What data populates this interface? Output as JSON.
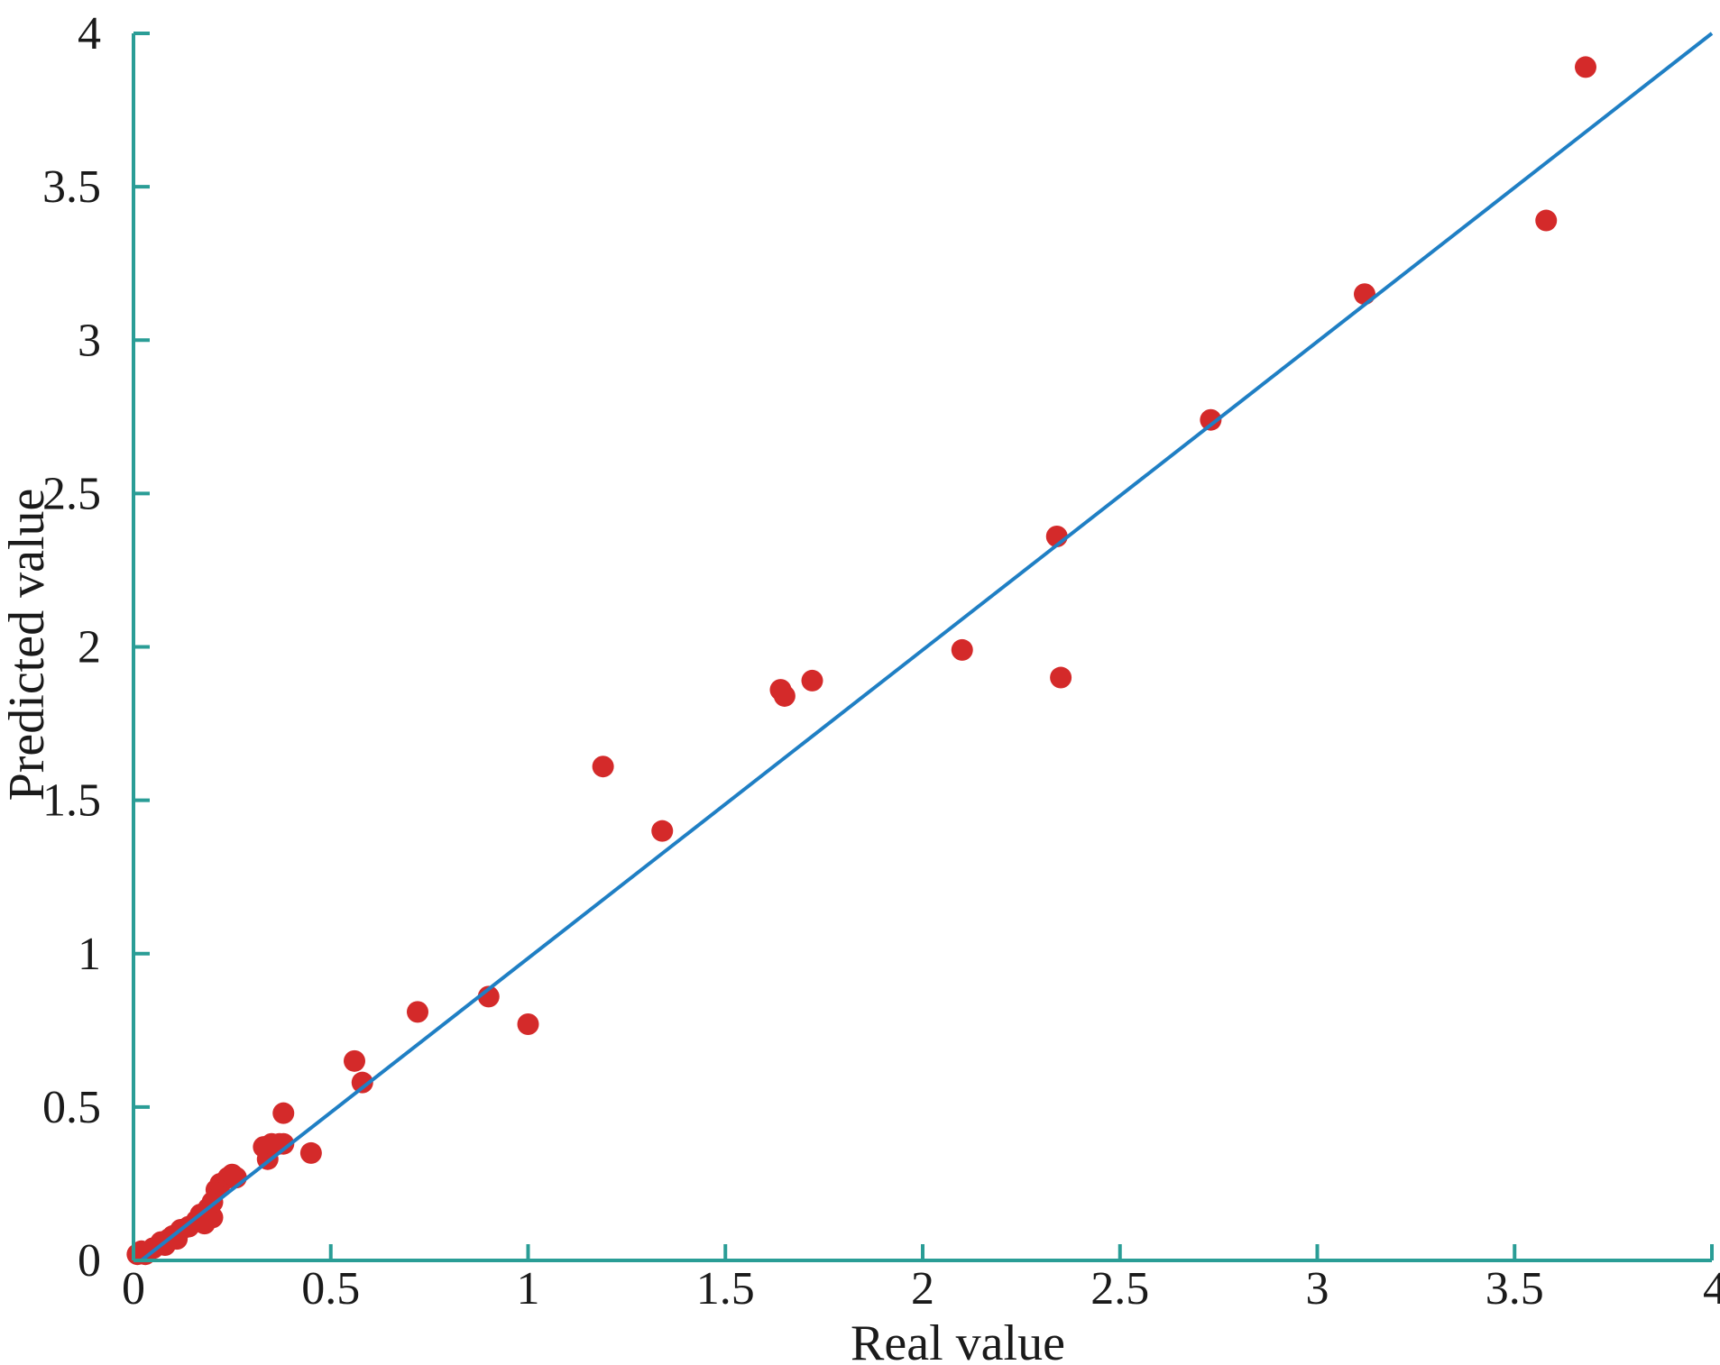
{
  "chart_data": {
    "type": "scatter",
    "title": "",
    "xlabel": "Real value",
    "ylabel": "Predicted value",
    "xlim": [
      0,
      4
    ],
    "ylim": [
      0,
      4
    ],
    "grid": false,
    "colors": {
      "axis": "#2a9d96",
      "points": "#d42a2a",
      "line": "#1f7fc4"
    },
    "x_ticks": [
      {
        "value": 0,
        "label": "0"
      },
      {
        "value": 0.5,
        "label": "0.5"
      },
      {
        "value": 1,
        "label": "1"
      },
      {
        "value": 1.5,
        "label": "1.5"
      },
      {
        "value": 2,
        "label": "2"
      },
      {
        "value": 2.5,
        "label": "2.5"
      },
      {
        "value": 3,
        "label": "3"
      },
      {
        "value": 3.5,
        "label": "3.5"
      },
      {
        "value": 4,
        "label": "4"
      }
    ],
    "y_ticks": [
      {
        "value": 0,
        "label": "0"
      },
      {
        "value": 0.5,
        "label": "0.5"
      },
      {
        "value": 1,
        "label": "1"
      },
      {
        "value": 1.5,
        "label": "1.5"
      },
      {
        "value": 2,
        "label": "2"
      },
      {
        "value": 2.5,
        "label": "2.5"
      },
      {
        "value": 3,
        "label": "3"
      },
      {
        "value": 3.5,
        "label": "3.5"
      },
      {
        "value": 4,
        "label": "4"
      }
    ],
    "reference_line": {
      "x": [
        0.02,
        4.0
      ],
      "y": [
        0.0,
        4.0
      ]
    },
    "points": [
      {
        "x": 0.01,
        "y": 0.02
      },
      {
        "x": 0.02,
        "y": 0.03
      },
      {
        "x": 0.03,
        "y": 0.02
      },
      {
        "x": 0.05,
        "y": 0.04
      },
      {
        "x": 0.07,
        "y": 0.06
      },
      {
        "x": 0.08,
        "y": 0.05
      },
      {
        "x": 0.09,
        "y": 0.07
      },
      {
        "x": 0.1,
        "y": 0.08
      },
      {
        "x": 0.11,
        "y": 0.07
      },
      {
        "x": 0.12,
        "y": 0.1
      },
      {
        "x": 0.14,
        "y": 0.11
      },
      {
        "x": 0.16,
        "y": 0.13
      },
      {
        "x": 0.17,
        "y": 0.15
      },
      {
        "x": 0.18,
        "y": 0.12
      },
      {
        "x": 0.19,
        "y": 0.17
      },
      {
        "x": 0.2,
        "y": 0.14
      },
      {
        "x": 0.2,
        "y": 0.19
      },
      {
        "x": 0.21,
        "y": 0.23
      },
      {
        "x": 0.22,
        "y": 0.25
      },
      {
        "x": 0.24,
        "y": 0.27
      },
      {
        "x": 0.25,
        "y": 0.28
      },
      {
        "x": 0.26,
        "y": 0.27
      },
      {
        "x": 0.33,
        "y": 0.37
      },
      {
        "x": 0.34,
        "y": 0.33
      },
      {
        "x": 0.35,
        "y": 0.38
      },
      {
        "x": 0.37,
        "y": 0.38
      },
      {
        "x": 0.38,
        "y": 0.38
      },
      {
        "x": 0.38,
        "y": 0.48
      },
      {
        "x": 0.45,
        "y": 0.35
      },
      {
        "x": 0.56,
        "y": 0.65
      },
      {
        "x": 0.58,
        "y": 0.58
      },
      {
        "x": 0.72,
        "y": 0.81
      },
      {
        "x": 0.9,
        "y": 0.86
      },
      {
        "x": 1.0,
        "y": 0.77
      },
      {
        "x": 1.19,
        "y": 1.61
      },
      {
        "x": 1.34,
        "y": 1.4
      },
      {
        "x": 1.64,
        "y": 1.86
      },
      {
        "x": 1.65,
        "y": 1.84
      },
      {
        "x": 1.72,
        "y": 1.89
      },
      {
        "x": 2.1,
        "y": 1.99
      },
      {
        "x": 2.34,
        "y": 2.36
      },
      {
        "x": 2.35,
        "y": 1.9
      },
      {
        "x": 2.73,
        "y": 2.74
      },
      {
        "x": 3.12,
        "y": 3.15
      },
      {
        "x": 3.58,
        "y": 3.39
      },
      {
        "x": 3.68,
        "y": 3.89
      }
    ]
  }
}
